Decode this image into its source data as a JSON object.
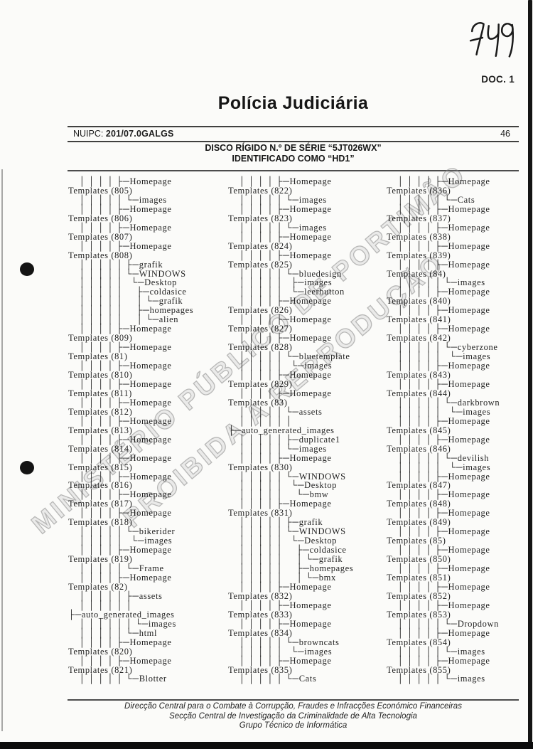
{
  "header": {
    "handwritten_number": "749",
    "doc_label": "DOC. 1",
    "title": "Polícia Judiciária",
    "nuipc_label": "NUIPC:",
    "nuipc_value": "201/07.0GALGS",
    "page_number": "46",
    "subtitle_line1": "DISCO RÍGIDO N.º DE SÉRIE “5JT026WX”",
    "subtitle_line2": "IDENTIFICADO COMO “HD1”"
  },
  "watermark": {
    "line1": "MINISTÉRIO PÚBLICO DE PORTIMÃO",
    "line2": "PROIBIDA A REPRODUÇÃO"
  },
  "tree": {
    "columns": [
      {
        "lines": [
          "    │ │ │ │ ├─Homepage",
          "Templates (805)",
          "    │ │ │ │ │ └─images",
          "    │ │ │ │ ├─Homepage",
          "Templates (806)",
          "    │ │ │ │ ├─Homepage",
          "Templates (807)",
          "    │ │ │ │ ├─Homepage",
          "Templates (808)",
          "    │ │ │ │ │ ├─grafik",
          "    │ │ │ │ │ └─WINDOWS",
          "    │ │ │ │ │   └─Desktop",
          "    │ │ │ │ │     ├─coldasice",
          "    │ │ │ │ │     │ └─grafik",
          "    │ │ │ │ │     ├─homepages",
          "    │ │ │ │ │     │ └─alien",
          "    │ │ │ │ ├─Homepage",
          "Templates (809)",
          "    │ │ │ │ ├─Homepage",
          "Templates (81)",
          "    │ │ │ │ ├─Homepage",
          "Templates (810)",
          "    │ │ │ │ ├─Homepage",
          "Templates (811)",
          "    │ │ │ │ ├─Homepage",
          "Templates (812)",
          "    │ │ │ │ ├─Homepage",
          "Templates (813)",
          "    │ │ │ │ ├─Homepage",
          "Templates (814)",
          "    │ │ │ │ ├─Homepage",
          "Templates (815)",
          "    │ │ │ │ ├─Homepage",
          "Templates (816)",
          "    │ │ │ │ ├─Homepage",
          "Templates (817)",
          "    │ │ │ │ ├─Homepage",
          "Templates (818)",
          "    │ │ │ │ │ └─bikerider",
          "    │ │ │ │ │   └─images",
          "    │ │ │ │ ├─Homepage",
          "Templates (819)",
          "    │ │ │ │ │ └─Frame",
          "    │ │ │ │ ├─Homepage",
          "Templates (82)",
          "    │ │ │ │ │ ├─assets",
          "    │ │ │ │ │ │",
          "├─auto_generated_images",
          "    │ │ │ │ │ │ └─images",
          "    │ │ │ │ │ └─html",
          "    │ │ │ │ ├─Homepage",
          "Templates (820)",
          "    │ │ │ │ ├─Homepage",
          "Templates (821)",
          "    │ │ │ │ │ └─Blotter"
        ]
      },
      {
        "lines": [
          "    │ │ │ │ ├─Homepage",
          "Templates (822)",
          "    │ │ │ │ │ └─images",
          "    │ │ │ │ ├─Homepage",
          "Templates (823)",
          "    │ │ │ │ │ └─images",
          "    │ │ │ │ ├─Homepage",
          "Templates (824)",
          "    │ │ │ │ ├─Homepage",
          "Templates (825)",
          "    │ │ │ │ │ └─bluedesign",
          "    │ │ │ │ │   ├─images",
          "    │ │ │ │ │   └─leerbutton",
          "    │ │ │ │ ├─Homepage",
          "Templates (826)",
          "    │ │ │ │ ├─Homepage",
          "Templates (827)",
          "    │ │ │ │ ├─Homepage",
          "Templates (828)",
          "    │ │ │ │ │ └─bluetemplate",
          "    │ │ │ │ │   └─images",
          "    │ │ │ │ ├─Homepage",
          "Templates (829)",
          "    │ │ │ │ ├─Homepage",
          "Templates (83)",
          "    │ │ │ │ │ └─assets",
          "    │ │ │ │ │ │",
          "├─auto_generated_images",
          "    │ │ │ │ │ ├─duplicate1",
          "    │ │ │ │ │ └─images",
          "    │ │ │ │ ├─Homepage",
          "Templates (830)",
          "    │ │ │ │ │ └─WINDOWS",
          "    │ │ │ │ │   └─Desktop",
          "    │ │ │ │ │     └─bmw",
          "    │ │ │ │ ├─Homepage",
          "Templates (831)",
          "    │ │ │ │ │ ├─grafik",
          "    │ │ │ │ │ └─WINDOWS",
          "    │ │ │ │ │   └─Desktop",
          "    │ │ │ │ │     ├─coldasice",
          "    │ │ │ │ │     │ └─grafik",
          "    │ │ │ │ │     ├─homepages",
          "    │ │ │ │ │     │ └─bmx",
          "    │ │ │ │ ├─Homepage",
          "Templates (832)",
          "    │ │ │ │ ├─Homepage",
          "Templates (833)",
          "    │ │ │ │ ├─Homepage",
          "Templates (834)",
          "    │ │ │ │ │ └─browncats",
          "    │ │ │ │ │   └─images",
          "    │ │ │ │ ├─Homepage",
          "Templates (835)",
          "    │ │ │ │ │ └─Cats"
        ]
      },
      {
        "lines": [
          "    │ │ │ │ ├─Homepage",
          "Templates (836)",
          "    │ │ │ │ │ └─Cats",
          "    │ │ │ │ ├─Homepage",
          "Templates (837)",
          "    │ │ │ │ ├─Homepage",
          "Templates (838)",
          "    │ │ │ │ ├─Homepage",
          "Templates (839)",
          "    │ │ │ │ ├─Homepage",
          "Templates (84)",
          "    │ │ │ │ │ └─images",
          "    │ │ │ │ ├─Homepage",
          "Templates (840)",
          "    │ │ │ │ ├─Homepage",
          "Templates (841)",
          "    │ │ │ │ ├─Homepage",
          "Templates (842)",
          "    │ │ │ │ │ └─cyberzone",
          "    │ │ │ │ │   └─images",
          "    │ │ │ │ ├─Homepage",
          "Templates (843)",
          "    │ │ │ │ ├─Homepage",
          "Templates (844)",
          "    │ │ │ │ │ └─darkbrown",
          "    │ │ │ │ │   └─images",
          "    │ │ │ │ ├─Homepage",
          "Templates (845)",
          "    │ │ │ │ ├─Homepage",
          "Templates (846)",
          "    │ │ │ │ │ └─devilish",
          "    │ │ │ │ │   └─images",
          "    │ │ │ │ ├─Homepage",
          "Templates (847)",
          "    │ │ │ │ ├─Homepage",
          "Templates (848)",
          "    │ │ │ │ ├─Homepage",
          "Templates (849)",
          "    │ │ │ │ ├─Homepage",
          "Templates (85)",
          "    │ │ │ │ ├─Homepage",
          "Templates (850)",
          "    │ │ │ │ ├─Homepage",
          "Templates (851)",
          "    │ │ │ │ ├─Homepage",
          "Templates (852)",
          "    │ │ │ │ ├─Homepage",
          "Templates (853)",
          "    │ │ │ │ │ └─Dropdown",
          "    │ │ │ │ ├─Homepage",
          "Templates (854)",
          "    │ │ │ │ │ └─images",
          "    │ │ │ │ ├─Homepage",
          "Templates (855)",
          "    │ │ │ │ │ └─images"
        ]
      }
    ]
  },
  "footer": {
    "line1": "Direcção Central para o Combate à Corrupção, Fraudes e Infracções Económico Financeiras",
    "line2": "Secção Central de Investigação da Criminalidade de Alta Tecnologia",
    "line3": "Grupo Técnico de Informática"
  }
}
